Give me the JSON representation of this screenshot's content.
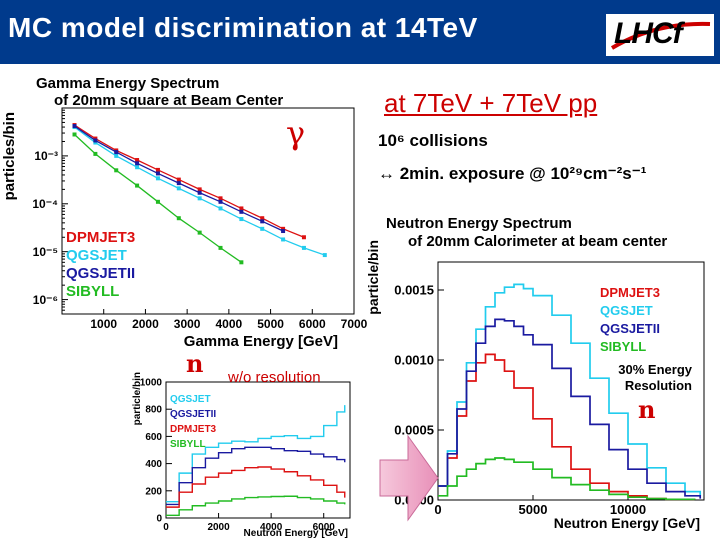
{
  "header": {
    "title": "MC model discrimination at 14TeV",
    "logo_text": "LHCf",
    "background_color": "#003a8c"
  },
  "conditions": {
    "title": "at 7TeV + 7TeV pp",
    "collisions": "10⁶ collisions",
    "exposure": "↔ 2min. exposure @ 10²⁹cm⁻²s⁻¹"
  },
  "chart_data": [
    {
      "type": "line",
      "title": "Gamma Energy Spectrum of 20mm square at Beam Center",
      "title_lines": [
        "Gamma Energy Spectrum",
        "of 20mm square at Beam Center"
      ],
      "xlabel": "Gamma Energy [GeV]",
      "ylabel": "particles/bin",
      "annotation": "γ",
      "y_scale": "log",
      "xlim": [
        0,
        7000
      ],
      "ylim": [
        5e-07,
        0.01
      ],
      "x_ticks": [
        1000,
        2000,
        3000,
        4000,
        5000,
        6000,
        7000
      ],
      "y_ticks": [
        {
          "value": 0.001,
          "label": "10⁻³"
        },
        {
          "value": 0.0001,
          "label": "10⁻⁴"
        },
        {
          "value": 1e-05,
          "label": "10⁻⁵"
        },
        {
          "value": 1e-06,
          "label": "10⁻⁶"
        }
      ],
      "legend_position": "bottom-left",
      "series": [
        {
          "name": "DPMJET3",
          "color": "#dd1111",
          "points": [
            [
              300,
              0.0044
            ],
            [
              800,
              0.0023
            ],
            [
              1300,
              0.0013
            ],
            [
              1800,
              0.00082
            ],
            [
              2300,
              0.00051
            ],
            [
              2800,
              0.00032
            ],
            [
              3300,
              0.0002
            ],
            [
              3800,
              0.00013
            ],
            [
              4300,
              8e-05
            ],
            [
              4800,
              5e-05
            ],
            [
              5300,
              3e-05
            ],
            [
              5800,
              2e-05
            ]
          ]
        },
        {
          "name": "QGSJET",
          "color": "#22ccee",
          "points": [
            [
              300,
              0.004
            ],
            [
              800,
              0.0019
            ],
            [
              1300,
              0.001
            ],
            [
              1800,
              0.00058
            ],
            [
              2300,
              0.00034
            ],
            [
              2800,
              0.00021
            ],
            [
              3300,
              0.00013
            ],
            [
              3800,
              8e-05
            ],
            [
              4300,
              4.8e-05
            ],
            [
              4800,
              3e-05
            ],
            [
              5300,
              1.8e-05
            ],
            [
              5800,
              1.2e-05
            ],
            [
              6300,
              8.5e-06
            ]
          ]
        },
        {
          "name": "QGSJETII",
          "color": "#1a1aa0",
          "points": [
            [
              300,
              0.0042
            ],
            [
              800,
              0.0021
            ],
            [
              1300,
              0.0012
            ],
            [
              1800,
              0.0007
            ],
            [
              2300,
              0.00043
            ],
            [
              2800,
              0.00027
            ],
            [
              3300,
              0.00017
            ],
            [
              3800,
              0.00011
            ],
            [
              4300,
              6.8e-05
            ],
            [
              4800,
              4.3e-05
            ],
            [
              5300,
              2.7e-05
            ]
          ]
        },
        {
          "name": "SIBYLL",
          "color": "#22bb22",
          "points": [
            [
              300,
              0.0028
            ],
            [
              800,
              0.0011
            ],
            [
              1300,
              0.0005
            ],
            [
              1800,
              0.00024
            ],
            [
              2300,
              0.00011
            ],
            [
              2800,
              5e-05
            ],
            [
              3300,
              2.5e-05
            ],
            [
              3800,
              1.2e-05
            ],
            [
              4300,
              6e-06
            ]
          ]
        }
      ]
    },
    {
      "type": "line",
      "title": "",
      "xlabel": "Neutron Energy [GeV]",
      "ylabel": "particle/bin",
      "annotation_symbol": "n",
      "annotation_text": "w/o resolution",
      "xlim": [
        0,
        7000
      ],
      "ylim": [
        0,
        1000
      ],
      "x_ticks": [
        0,
        2000,
        4000,
        6000
      ],
      "y_ticks": [
        0,
        200,
        400,
        600,
        800,
        1000
      ],
      "legend_position": "top-left",
      "series": [
        {
          "name": "QGSJET",
          "color": "#22ccee",
          "points": [
            [
              0,
              120
            ],
            [
              500,
              330
            ],
            [
              1000,
              470
            ],
            [
              1500,
              520
            ],
            [
              2000,
              550
            ],
            [
              2500,
              565
            ],
            [
              3000,
              560
            ],
            [
              3500,
              585
            ],
            [
              4000,
              600
            ],
            [
              4500,
              605
            ],
            [
              5000,
              585
            ],
            [
              5500,
              600
            ],
            [
              6000,
              680
            ],
            [
              6500,
              780
            ],
            [
              6800,
              830
            ]
          ]
        },
        {
          "name": "QGSJETII",
          "color": "#1a1aa0",
          "points": [
            [
              0,
              100
            ],
            [
              500,
              260
            ],
            [
              1000,
              370
            ],
            [
              1500,
              440
            ],
            [
              2000,
              480
            ],
            [
              2500,
              510
            ],
            [
              3000,
              520
            ],
            [
              3500,
              520
            ],
            [
              4000,
              510
            ],
            [
              4500,
              495
            ],
            [
              5000,
              490
            ],
            [
              5500,
              470
            ],
            [
              6000,
              450
            ],
            [
              6500,
              430
            ],
            [
              6800,
              410
            ]
          ]
        },
        {
          "name": "DPMJET3",
          "color": "#dd1111",
          "points": [
            [
              0,
              80
            ],
            [
              500,
              190
            ],
            [
              1000,
              250
            ],
            [
              1500,
              300
            ],
            [
              2000,
              330
            ],
            [
              2500,
              350
            ],
            [
              3000,
              370
            ],
            [
              3500,
              375
            ],
            [
              4000,
              360
            ],
            [
              4500,
              340
            ],
            [
              5000,
              310
            ],
            [
              5500,
              280
            ],
            [
              6000,
              240
            ],
            [
              6500,
              190
            ],
            [
              6800,
              150
            ]
          ]
        },
        {
          "name": "SIBYLL",
          "color": "#22bb22",
          "points": [
            [
              0,
              20
            ],
            [
              500,
              60
            ],
            [
              1000,
              90
            ],
            [
              1500,
              110
            ],
            [
              2000,
              125
            ],
            [
              2500,
              140
            ],
            [
              3000,
              150
            ],
            [
              3500,
              155
            ],
            [
              4000,
              158
            ],
            [
              4500,
              160
            ],
            [
              5000,
              150
            ],
            [
              5500,
              140
            ],
            [
              6000,
              125
            ],
            [
              6500,
              110
            ],
            [
              6800,
              100
            ]
          ]
        }
      ]
    },
    {
      "type": "line",
      "title": "Neutron Energy Spectrum of 20mm Calorimeter at beam center",
      "title_lines": [
        "Neutron Energy Spectrum",
        "of 20mm Calorimeter at beam center"
      ],
      "xlabel": "Neutron Energy [GeV]",
      "ylabel": "particle/bin",
      "annotation_symbol": "n",
      "annotation_text": "30% Energy Resolution",
      "annotation_lines": [
        "30% Energy",
        "Resolution"
      ],
      "xlim": [
        0,
        14000
      ],
      "ylim": [
        0,
        0.0017
      ],
      "x_ticks": [
        0,
        5000,
        10000
      ],
      "y_ticks": [
        {
          "value": 0,
          "label": "0.0000"
        },
        {
          "value": 0.0005,
          "label": "0.0005"
        },
        {
          "value": 0.001,
          "label": "0.0010"
        },
        {
          "value": 0.0015,
          "label": "0.0015"
        }
      ],
      "legend_position": "top-right",
      "series": [
        {
          "name": "DPMJET3",
          "color": "#dd1111",
          "points": [
            [
              0,
              0.0001
            ],
            [
              500,
              0.0003
            ],
            [
              1000,
              0.0006
            ],
            [
              1500,
              0.00085
            ],
            [
              2000,
              0.00098
            ],
            [
              2500,
              0.00104
            ],
            [
              3000,
              0.001
            ],
            [
              3500,
              0.00092
            ],
            [
              4000,
              0.0008
            ],
            [
              5000,
              0.00058
            ],
            [
              6000,
              0.00038
            ],
            [
              7000,
              0.00022
            ],
            [
              8000,
              0.00012
            ],
            [
              9000,
              6e-05
            ],
            [
              10000,
              3e-05
            ],
            [
              11000,
              1e-05
            ],
            [
              12000,
              5e-06
            ],
            [
              13500,
              2e-06
            ]
          ]
        },
        {
          "name": "QGSJET",
          "color": "#22ccee",
          "points": [
            [
              0,
              0.0001
            ],
            [
              500,
              0.00035
            ],
            [
              1000,
              0.0007
            ],
            [
              1500,
              0.00098
            ],
            [
              2000,
              0.00122
            ],
            [
              2500,
              0.00138
            ],
            [
              3000,
              0.00148
            ],
            [
              3500,
              0.00152
            ],
            [
              4000,
              0.00154
            ],
            [
              4500,
              0.00151
            ],
            [
              5000,
              0.00146
            ],
            [
              6000,
              0.00132
            ],
            [
              7000,
              0.00112
            ],
            [
              8000,
              0.00087
            ],
            [
              9000,
              0.00062
            ],
            [
              10000,
              0.0004
            ],
            [
              11000,
              0.00023
            ],
            [
              12000,
              0.00012
            ],
            [
              13000,
              6e-05
            ],
            [
              13800,
              3e-05
            ]
          ]
        },
        {
          "name": "QGSJETII",
          "color": "#1a1aa0",
          "points": [
            [
              0,
              0.0001
            ],
            [
              500,
              0.00033
            ],
            [
              1000,
              0.00065
            ],
            [
              1500,
              0.00092
            ],
            [
              2000,
              0.00112
            ],
            [
              2500,
              0.00124
            ],
            [
              3000,
              0.00129
            ],
            [
              3500,
              0.00128
            ],
            [
              4000,
              0.00124
            ],
            [
              4500,
              0.00118
            ],
            [
              5000,
              0.00111
            ],
            [
              6000,
              0.00094
            ],
            [
              7000,
              0.00074
            ],
            [
              8000,
              0.00054
            ],
            [
              9000,
              0.00036
            ],
            [
              10000,
              0.00022
            ],
            [
              11000,
              0.00012
            ],
            [
              12000,
              6e-05
            ],
            [
              13000,
              3e-05
            ],
            [
              13800,
              1e-05
            ]
          ]
        },
        {
          "name": "SIBYLL",
          "color": "#22bb22",
          "points": [
            [
              0,
              3e-05
            ],
            [
              500,
              0.0001
            ],
            [
              1000,
              0.00017
            ],
            [
              1500,
              0.00022
            ],
            [
              2000,
              0.00026
            ],
            [
              2500,
              0.00029
            ],
            [
              3000,
              0.0003
            ],
            [
              3500,
              0.00029
            ],
            [
              4000,
              0.00027
            ],
            [
              5000,
              0.00022
            ],
            [
              6000,
              0.00016
            ],
            [
              7000,
              0.00011
            ],
            [
              8000,
              7e-05
            ],
            [
              9000,
              4e-05
            ],
            [
              10000,
              2e-05
            ],
            [
              11000,
              1e-05
            ],
            [
              12000,
              5e-06
            ],
            [
              13500,
              2e-06
            ]
          ]
        }
      ]
    }
  ]
}
